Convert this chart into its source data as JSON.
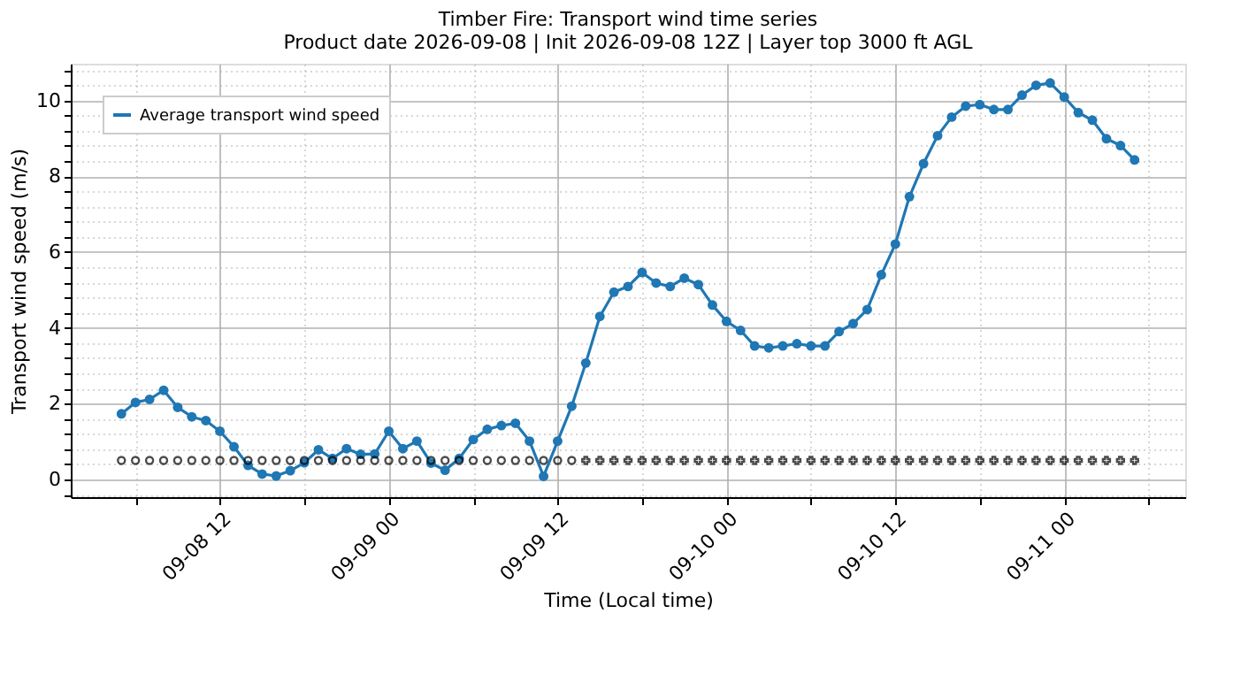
{
  "chart_data": {
    "type": "line",
    "title": "Timber Fire: Transport wind time series",
    "subtitle": "Product date 2026-09-08 | Init 2026-09-08 12Z | Layer top 3000 ft AGL",
    "xlabel": "Time (Local time)",
    "ylabel": "Transport wind speed (m/s)",
    "x": [
      "2026-09-08T05:00",
      "2026-09-08T06:00",
      "2026-09-08T07:00",
      "2026-09-08T08:00",
      "2026-09-08T09:00",
      "2026-09-08T10:00",
      "2026-09-08T11:00",
      "2026-09-08T12:00",
      "2026-09-08T13:00",
      "2026-09-08T14:00",
      "2026-09-08T15:00",
      "2026-09-08T16:00",
      "2026-09-08T17:00",
      "2026-09-08T18:00",
      "2026-09-08T19:00",
      "2026-09-08T20:00",
      "2026-09-08T21:00",
      "2026-09-08T22:00",
      "2026-09-08T23:00",
      "2026-09-09T00:00",
      "2026-09-09T01:00",
      "2026-09-09T02:00",
      "2026-09-09T03:00",
      "2026-09-09T04:00",
      "2026-09-09T05:00",
      "2026-09-09T06:00",
      "2026-09-09T07:00",
      "2026-09-09T08:00",
      "2026-09-09T09:00",
      "2026-09-09T10:00",
      "2026-09-09T11:00",
      "2026-09-09T12:00",
      "2026-09-09T13:00",
      "2026-09-09T14:00",
      "2026-09-09T15:00",
      "2026-09-09T16:00",
      "2026-09-09T17:00",
      "2026-09-09T18:00",
      "2026-09-09T19:00",
      "2026-09-09T20:00",
      "2026-09-09T21:00",
      "2026-09-09T22:00",
      "2026-09-09T23:00",
      "2026-09-10T00:00",
      "2026-09-10T01:00",
      "2026-09-10T02:00",
      "2026-09-10T03:00",
      "2026-09-10T04:00",
      "2026-09-10T05:00",
      "2026-09-10T06:00",
      "2026-09-10T07:00",
      "2026-09-10T08:00",
      "2026-09-10T09:00",
      "2026-09-10T10:00",
      "2026-09-10T11:00",
      "2026-09-10T12:00",
      "2026-09-10T13:00",
      "2026-09-10T14:00",
      "2026-09-10T15:00",
      "2026-09-10T16:00",
      "2026-09-10T17:00",
      "2026-09-10T18:00",
      "2026-09-10T19:00",
      "2026-09-10T20:00",
      "2026-09-10T21:00",
      "2026-09-10T22:00",
      "2026-09-10T23:00",
      "2026-09-11T00:00",
      "2026-09-11T01:00",
      "2026-09-11T02:00",
      "2026-09-11T03:00",
      "2026-09-11T04:00",
      "2026-09-11T05:00"
    ],
    "series": [
      {
        "name": "Average transport wind speed",
        "type": "line",
        "color": "#1f77b4",
        "marker": "circle",
        "values": [
          1.73,
          2.03,
          2.11,
          2.35,
          1.9,
          1.65,
          1.55,
          1.27,
          0.86,
          0.37,
          0.14,
          0.09,
          0.23,
          0.44,
          0.78,
          0.55,
          0.81,
          0.66,
          0.67,
          1.27,
          0.81,
          1.01,
          0.43,
          0.24,
          0.55,
          1.05,
          1.32,
          1.42,
          1.48,
          1.01,
          0.08,
          1.01,
          1.93,
          3.07,
          4.3,
          4.94,
          5.09,
          5.46,
          5.18,
          5.09,
          5.31,
          5.14,
          4.6,
          4.17,
          3.93,
          3.52,
          3.47,
          3.52,
          3.58,
          3.52,
          3.52,
          3.9,
          4.11,
          4.48,
          5.4,
          6.21,
          7.46,
          8.33,
          9.07,
          9.56,
          9.85,
          9.89,
          9.76,
          9.76,
          10.14,
          10.4,
          10.46,
          10.09,
          9.68,
          9.48,
          8.99,
          8.81,
          8.43
        ]
      },
      {
        "type": "scatter",
        "color": "#000000",
        "marker": "circle",
        "x": [
          "2026-09-08T05:00",
          "2026-09-08T06:00",
          "2026-09-08T07:00",
          "2026-09-08T08:00",
          "2026-09-08T09:00",
          "2026-09-08T10:00",
          "2026-09-08T11:00",
          "2026-09-08T12:00",
          "2026-09-08T13:00",
          "2026-09-08T14:00",
          "2026-09-08T15:00",
          "2026-09-08T16:00",
          "2026-09-08T17:00",
          "2026-09-08T18:00",
          "2026-09-08T19:00",
          "2026-09-08T20:00",
          "2026-09-08T21:00",
          "2026-09-08T22:00",
          "2026-09-08T23:00",
          "2026-09-09T00:00",
          "2026-09-09T01:00",
          "2026-09-09T02:00",
          "2026-09-09T03:00",
          "2026-09-09T04:00",
          "2026-09-09T05:00",
          "2026-09-09T06:00",
          "2026-09-09T07:00",
          "2026-09-09T08:00",
          "2026-09-09T09:00",
          "2026-09-09T10:00",
          "2026-09-09T11:00",
          "2026-09-09T12:00",
          "2026-09-09T13:00"
        ],
        "values": [
          0.5,
          0.5,
          0.5,
          0.5,
          0.5,
          0.5,
          0.5,
          0.5,
          0.5,
          0.5,
          0.5,
          0.5,
          0.5,
          0.5,
          0.5,
          0.5,
          0.5,
          0.5,
          0.5,
          0.5,
          0.5,
          0.5,
          0.5,
          0.5,
          0.5,
          0.5,
          0.5,
          0.5,
          0.5,
          0.5,
          0.5,
          0.5,
          0.5
        ]
      },
      {
        "type": "scatter",
        "color": "#000000",
        "marker": "cross",
        "x": [
          "2026-09-09T14:00",
          "2026-09-09T15:00",
          "2026-09-09T16:00",
          "2026-09-09T17:00",
          "2026-09-09T18:00",
          "2026-09-09T19:00",
          "2026-09-09T20:00",
          "2026-09-09T21:00",
          "2026-09-09T22:00",
          "2026-09-09T23:00",
          "2026-09-10T00:00",
          "2026-09-10T01:00",
          "2026-09-10T02:00",
          "2026-09-10T03:00",
          "2026-09-10T04:00",
          "2026-09-10T05:00",
          "2026-09-10T06:00",
          "2026-09-10T07:00",
          "2026-09-10T08:00",
          "2026-09-10T09:00",
          "2026-09-10T10:00",
          "2026-09-10T11:00",
          "2026-09-10T12:00",
          "2026-09-10T13:00",
          "2026-09-10T14:00",
          "2026-09-10T15:00",
          "2026-09-10T16:00",
          "2026-09-10T17:00",
          "2026-09-10T18:00",
          "2026-09-10T19:00",
          "2026-09-10T20:00",
          "2026-09-10T21:00",
          "2026-09-10T22:00",
          "2026-09-10T23:00",
          "2026-09-11T00:00",
          "2026-09-11T01:00",
          "2026-09-11T02:00",
          "2026-09-11T03:00",
          "2026-09-11T04:00",
          "2026-09-11T05:00"
        ],
        "values": [
          0.5,
          0.5,
          0.5,
          0.5,
          0.5,
          0.5,
          0.5,
          0.5,
          0.5,
          0.5,
          0.5,
          0.5,
          0.5,
          0.5,
          0.5,
          0.5,
          0.5,
          0.5,
          0.5,
          0.5,
          0.5,
          0.5,
          0.5,
          0.5,
          0.5,
          0.5,
          0.5,
          0.5,
          0.5,
          0.5,
          0.5,
          0.5,
          0.5,
          0.5,
          0.5,
          0.5,
          0.5,
          0.5,
          0.5,
          0.5
        ]
      }
    ],
    "xlim": [
      "2026-09-08T01:24",
      "2026-09-11T08:36"
    ],
    "xticks": [
      {
        "value": "2026-09-08T06:00",
        "label": null
      },
      {
        "value": "2026-09-08T12:00",
        "label": "09-08 12"
      },
      {
        "value": "2026-09-08T18:00",
        "label": null
      },
      {
        "value": "2026-09-09T00:00",
        "label": "09-09 00"
      },
      {
        "value": "2026-09-09T06:00",
        "label": null
      },
      {
        "value": "2026-09-09T12:00",
        "label": "09-09 12"
      },
      {
        "value": "2026-09-09T18:00",
        "label": null
      },
      {
        "value": "2026-09-10T00:00",
        "label": "09-10 00"
      },
      {
        "value": "2026-09-10T06:00",
        "label": null
      },
      {
        "value": "2026-09-10T12:00",
        "label": "09-10 12"
      },
      {
        "value": "2026-09-10T18:00",
        "label": null
      },
      {
        "value": "2026-09-11T00:00",
        "label": "09-11 00"
      },
      {
        "value": "2026-09-11T06:00",
        "label": null
      }
    ],
    "ylim": [
      -0.47,
      10.97
    ],
    "yticks": [
      {
        "value": -0.4,
        "label": null
      },
      0,
      {
        "value": 0.4,
        "label": null
      },
      {
        "value": 0.8,
        "label": null
      },
      {
        "value": 1.2,
        "label": null
      },
      {
        "value": 1.6,
        "label": null
      },
      2,
      {
        "value": 2.4,
        "label": null
      },
      {
        "value": 2.8,
        "label": null
      },
      {
        "value": 3.2,
        "label": null
      },
      {
        "value": 3.6,
        "label": null
      },
      4,
      {
        "value": 4.4,
        "label": null
      },
      {
        "value": 4.8,
        "label": null
      },
      {
        "value": 5.2,
        "label": null
      },
      {
        "value": 5.6,
        "label": null
      },
      6,
      {
        "value": 6.4,
        "label": null
      },
      {
        "value": 6.8,
        "label": null
      },
      {
        "value": 7.2,
        "label": null
      },
      {
        "value": 7.6,
        "label": null
      },
      8,
      {
        "value": 8.4,
        "label": null
      },
      {
        "value": 8.8,
        "label": null
      },
      {
        "value": 9.2,
        "label": null
      },
      {
        "value": 9.6,
        "label": null
      },
      10,
      {
        "value": 10.4,
        "label": null
      },
      {
        "value": 10.8,
        "label": null
      }
    ],
    "grid": true,
    "legend": "top left",
    "line_style": "solid"
  }
}
